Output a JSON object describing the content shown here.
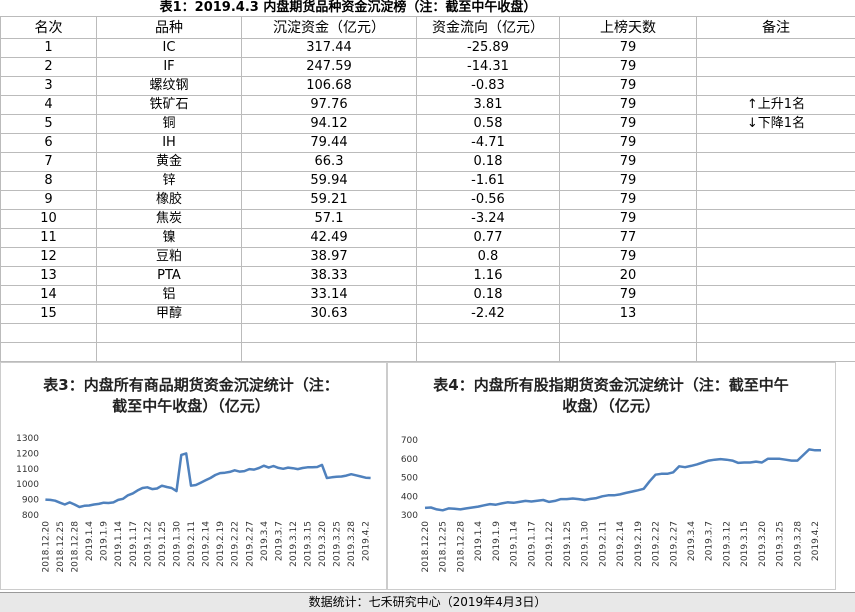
{
  "table": {
    "title": "表1：2019.4.3 内盘期货品种资金沉淀榜（注：截至中午收盘）",
    "header": [
      "名次",
      "品种",
      "沉淀资金（亿元）",
      "资金流向（亿元）",
      "上榜天数",
      "备注"
    ],
    "rows": [
      [
        "1",
        "IC",
        "317.44",
        "-25.89",
        "79"
      ],
      [
        "2",
        "IF",
        "247.59",
        "-14.31",
        "79"
      ],
      [
        "3",
        "螺纹钢",
        "106.68",
        "-0.83",
        "79"
      ],
      [
        "4",
        "铁矿石",
        "97.76",
        "3.81",
        "79"
      ],
      [
        "5",
        "铜",
        "94.12",
        "0.58",
        "79"
      ],
      [
        "6",
        "IH",
        "79.44",
        "-4.71",
        "79"
      ],
      [
        "7",
        "黄金",
        "66.3",
        "0.18",
        "79"
      ],
      [
        "8",
        "锌",
        "59.94",
        "-1.61",
        "79"
      ],
      [
        "9",
        "橡胶",
        "59.21",
        "-0.56",
        "79"
      ],
      [
        "10",
        "焦炭",
        "57.1",
        "-3.24",
        "79"
      ],
      [
        "11",
        "镍",
        "42.49",
        "0.77",
        "77"
      ],
      [
        "12",
        "豆粕",
        "38.97",
        "0.8",
        "79"
      ],
      [
        "13",
        "PTA",
        "38.33",
        "1.16",
        "20"
      ],
      [
        "14",
        "铝",
        "33.14",
        "0.18",
        "79"
      ],
      [
        "15",
        "甲醇",
        "30.63",
        "-2.42",
        "13"
      ]
    ],
    "remarks": [
      "↑上升1名",
      "↓下降1名"
    ]
  },
  "chart_data": [
    {
      "type": "line",
      "title": "表3：内盘所有商品期货资金沉淀统计（注：截至中午收盘）（亿元）",
      "categories": [
        "2018.12.20",
        null,
        null,
        "2018.12.25",
        null,
        null,
        "2018.12.28",
        null,
        null,
        "2019.1.4",
        null,
        null,
        "2019.1.9",
        null,
        null,
        "2019.1.14",
        null,
        null,
        "2019.1.17",
        null,
        null,
        "2019.1.22",
        null,
        null,
        "2019.1.25",
        null,
        null,
        "2019.1.30",
        null,
        null,
        "2019.2.11",
        null,
        null,
        "2019.2.14",
        null,
        null,
        "2019.2.19",
        null,
        null,
        "2019.2.22",
        null,
        null,
        "2019.2.27",
        null,
        null,
        "2019.3.4",
        null,
        null,
        "2019.3.7",
        null,
        null,
        "2019.3.12",
        null,
        null,
        "2019.3.15",
        null,
        null,
        "2019.3.20",
        null,
        null,
        "2019.3.25",
        null,
        null,
        "2019.3.28",
        null,
        null,
        "2019.4.2",
        null
      ],
      "color": "#4f81bd",
      "values": [
        900,
        898,
        893,
        880,
        868,
        882,
        868,
        852,
        860,
        862,
        868,
        872,
        880,
        878,
        882,
        898,
        905,
        928,
        940,
        960,
        975,
        980,
        968,
        972,
        990,
        982,
        975,
        955,
        1190,
        1200,
        990,
        995,
        1010,
        1025,
        1040,
        1060,
        1072,
        1075,
        1080,
        1090,
        1082,
        1085,
        1098,
        1095,
        1105,
        1120,
        1108,
        1118,
        1106,
        1100,
        1108,
        1104,
        1098,
        1105,
        1110,
        1110,
        1112,
        1125,
        1040,
        1045,
        1048,
        1050,
        1056,
        1065,
        1058,
        1050,
        1042,
        1040
      ],
      "ylim": [
        800,
        1300
      ],
      "yticks": [
        800,
        900,
        1000,
        1100,
        1200,
        1300
      ],
      "grid": false
    },
    {
      "type": "line",
      "title": "表4：内盘所有股指期货资金沉淀统计（注：截至中午收盘）（亿元）",
      "categories": [
        "2018.12.20",
        null,
        null,
        "2018.12.25",
        null,
        null,
        "2018.12.28",
        null,
        null,
        "2019.1.4",
        null,
        null,
        "2019.1.9",
        null,
        null,
        "2019.1.14",
        null,
        null,
        "2019.1.17",
        null,
        null,
        "2019.1.22",
        null,
        null,
        "2019.1.25",
        null,
        null,
        "2019.1.30",
        null,
        null,
        "2019.2.11",
        null,
        null,
        "2019.2.14",
        null,
        null,
        "2019.2.19",
        null,
        null,
        "2019.2.22",
        null,
        null,
        "2019.2.27",
        null,
        null,
        "2019.3.4",
        null,
        null,
        "2019.3.7",
        null,
        null,
        "2019.3.12",
        null,
        null,
        "2019.3.15",
        null,
        null,
        "2019.3.20",
        null,
        null,
        "2019.3.25",
        null,
        null,
        "2019.3.28",
        null,
        null,
        "2019.4.2",
        null
      ],
      "color": "#4f81bd",
      "values": [
        338,
        340,
        330,
        325,
        335,
        333,
        330,
        335,
        340,
        345,
        352,
        358,
        355,
        362,
        368,
        365,
        370,
        375,
        372,
        376,
        380,
        370,
        375,
        385,
        385,
        388,
        385,
        380,
        386,
        390,
        400,
        405,
        405,
        410,
        418,
        425,
        432,
        440,
        480,
        515,
        520,
        520,
        528,
        560,
        555,
        562,
        570,
        580,
        590,
        595,
        598,
        595,
        590,
        578,
        580,
        580,
        585,
        580,
        600,
        600,
        600,
        595,
        590,
        590,
        620,
        650,
        645,
        645
      ],
      "ylim": [
        300,
        700
      ],
      "yticks": [
        300,
        400,
        500,
        600,
        700
      ],
      "grid": false
    }
  ],
  "footer": "数据统计：七禾研究中心（2019年4月3日）"
}
